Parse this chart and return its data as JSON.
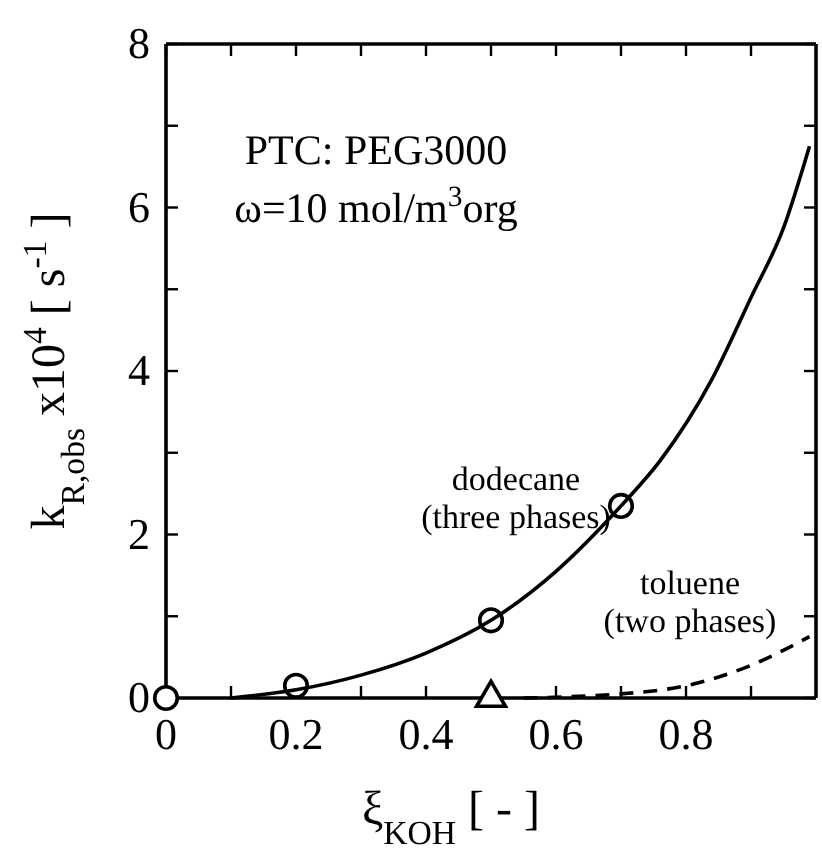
{
  "chart_data": {
    "type": "line",
    "xlabel": "ξ$_{KOH}$ [ - ]",
    "ylabel": "k$_{R,obs}$ x10$^{4}$ [ s$^{-1}$ ]",
    "xlim": [
      0,
      1
    ],
    "ylim": [
      0,
      8
    ],
    "xticks": [
      0,
      {
        "value": 0.1,
        "label": null
      },
      0.2,
      {
        "value": 0.3,
        "label": null
      },
      0.4,
      {
        "value": 0.5,
        "label": null
      },
      0.6,
      {
        "value": 0.7,
        "label": null
      },
      0.8,
      {
        "value": 0.9,
        "label": null
      }
    ],
    "yticks": [
      0,
      {
        "value": 1,
        "label": null
      },
      2,
      {
        "value": 3,
        "label": null
      },
      4,
      {
        "value": 5,
        "label": null
      },
      6,
      {
        "value": 7,
        "label": null
      },
      8
    ],
    "series": [
      {
        "type": "scatter",
        "marker": "circle",
        "color": "#000000",
        "x": [
          0,
          0.2,
          0.5,
          0.7
        ],
        "values": [
          0,
          0.15,
          0.95,
          2.35
        ]
      },
      {
        "type": "line",
        "line_style": "solid",
        "marker": "none",
        "color": "#000000",
        "x": [
          0.1,
          0.2,
          0.3,
          0.4,
          0.5,
          0.6,
          0.7,
          0.76,
          0.84,
          0.9,
          0.95,
          0.99
        ],
        "values": [
          0,
          0.1,
          0.28,
          0.55,
          0.95,
          1.55,
          2.35,
          2.9,
          3.9,
          4.9,
          5.75,
          6.75
        ]
      },
      {
        "type": "scatter",
        "marker": "triangle",
        "color": "#000000",
        "x": [
          0.5
        ],
        "values": [
          0
        ]
      },
      {
        "type": "line",
        "line_style": "dashed",
        "marker": "none",
        "color": "#000000",
        "x": [
          0.55,
          0.6,
          0.7,
          0.8,
          0.9,
          0.99
        ],
        "values": [
          0,
          0.01,
          0.05,
          0.15,
          0.4,
          0.75
        ]
      }
    ],
    "annotations": [
      "PTC: PEG3000",
      "ω=10 mol/m$^{3}$org",
      "dodecane\n(three phases)",
      "toluene\n(two phases)"
    ],
    "grid": false
  }
}
